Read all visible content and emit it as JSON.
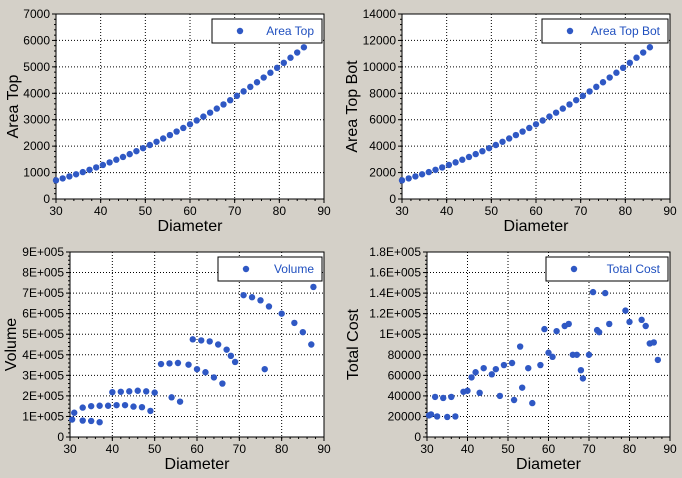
{
  "colors": {
    "marker": "#2f58c4",
    "background": "#d4d0c8",
    "grid": "#000000"
  },
  "chart_data": [
    {
      "type": "scatter",
      "xlabel": "Diameter",
      "ylabel": "Area Top",
      "xlim": [
        30,
        90
      ],
      "ylim": [
        0,
        7000
      ],
      "xticks": [
        30,
        40,
        50,
        60,
        70,
        80,
        90
      ],
      "xtick_labels": [
        "30",
        "40",
        "50",
        "60",
        "70",
        "80",
        "90"
      ],
      "yticks": [
        0,
        1000,
        2000,
        3000,
        4000,
        5000,
        6000,
        7000
      ],
      "ytick_labels": [
        "0",
        "1000",
        "2000",
        "3000",
        "4000",
        "5000",
        "6000",
        "7000"
      ],
      "grid": true,
      "legend": "top-right",
      "series": [
        {
          "name": "Area Top",
          "points": [
            [
              30,
              707
            ],
            [
              31.5,
              779
            ],
            [
              33,
              855
            ],
            [
              34.5,
              935
            ],
            [
              36,
              1018
            ],
            [
              37.5,
              1104
            ],
            [
              39,
              1195
            ],
            [
              40.5,
              1288
            ],
            [
              42,
              1385
            ],
            [
              43.5,
              1486
            ],
            [
              45,
              1590
            ],
            [
              46.5,
              1698
            ],
            [
              48,
              1810
            ],
            [
              49.5,
              1924
            ],
            [
              51,
              2043
            ],
            [
              52.5,
              2165
            ],
            [
              54,
              2290
            ],
            [
              55.5,
              2419
            ],
            [
              57,
              2552
            ],
            [
              58.5,
              2688
            ],
            [
              60,
              2827
            ],
            [
              61.5,
              2971
            ],
            [
              63,
              3117
            ],
            [
              64.5,
              3267
            ],
            [
              66,
              3421
            ],
            [
              67.5,
              3578
            ],
            [
              69,
              3739
            ],
            [
              70.5,
              3904
            ],
            [
              72,
              4072
            ],
            [
              73.5,
              4243
            ],
            [
              75,
              4418
            ],
            [
              76.5,
              4596
            ],
            [
              78,
              4778
            ],
            [
              79.5,
              4964
            ],
            [
              81,
              5153
            ],
            [
              82.5,
              5346
            ],
            [
              84,
              5542
            ],
            [
              85.5,
              5741
            ]
          ]
        }
      ]
    },
    {
      "type": "scatter",
      "xlabel": "Diameter",
      "ylabel": "Area Top Bot",
      "xlim": [
        30,
        90
      ],
      "ylim": [
        0,
        14000
      ],
      "xticks": [
        30,
        40,
        50,
        60,
        70,
        80,
        90
      ],
      "xtick_labels": [
        "30",
        "40",
        "50",
        "60",
        "70",
        "80",
        "90"
      ],
      "yticks": [
        0,
        2000,
        4000,
        6000,
        8000,
        10000,
        12000,
        14000
      ],
      "ytick_labels": [
        "0",
        "2000",
        "4000",
        "6000",
        "8000",
        "10000",
        "12000",
        "14000"
      ],
      "grid": true,
      "legend": "top-right",
      "series": [
        {
          "name": "Area Top Bot",
          "points": [
            [
              30,
              1414
            ],
            [
              31.5,
              1558
            ],
            [
              33,
              1710
            ],
            [
              34.5,
              1870
            ],
            [
              36,
              2036
            ],
            [
              37.5,
              2209
            ],
            [
              39,
              2389
            ],
            [
              40.5,
              2577
            ],
            [
              42,
              2771
            ],
            [
              43.5,
              2972
            ],
            [
              45,
              3181
            ],
            [
              46.5,
              3397
            ],
            [
              48,
              3619
            ],
            [
              49.5,
              3849
            ],
            [
              51,
              4086
            ],
            [
              52.5,
              4330
            ],
            [
              54,
              4580
            ],
            [
              55.5,
              4838
            ],
            [
              57,
              5104
            ],
            [
              58.5,
              5376
            ],
            [
              60,
              5655
            ],
            [
              61.5,
              5941
            ],
            [
              63,
              6235
            ],
            [
              64.5,
              6535
            ],
            [
              66,
              6842
            ],
            [
              67.5,
              7157
            ],
            [
              69,
              7479
            ],
            [
              70.5,
              7807
            ],
            [
              72,
              8143
            ],
            [
              73.5,
              8486
            ],
            [
              75,
              8836
            ],
            [
              76.5,
              9193
            ],
            [
              78,
              9557
            ],
            [
              79.5,
              9928
            ],
            [
              81,
              10306
            ],
            [
              82.5,
              10691
            ],
            [
              84,
              11084
            ],
            [
              85.5,
              11483
            ]
          ]
        }
      ]
    },
    {
      "type": "scatter",
      "xlabel": "Diameter",
      "ylabel": "Volume",
      "xlim": [
        30,
        90
      ],
      "ylim": [
        0,
        900000
      ],
      "xticks": [
        30,
        40,
        50,
        60,
        70,
        80,
        90
      ],
      "xtick_labels": [
        "30",
        "40",
        "50",
        "60",
        "70",
        "80",
        "90"
      ],
      "yticks": [
        0,
        100000,
        200000,
        300000,
        400000,
        500000,
        600000,
        700000,
        800000,
        900000
      ],
      "ytick_labels": [
        "0",
        "1E+005",
        "2E+005",
        "3E+005",
        "4E+005",
        "5E+005",
        "6E+005",
        "7E+005",
        "8E+005",
        "9E+005"
      ],
      "grid": true,
      "legend": "top-right",
      "series": [
        {
          "name": "Volume",
          "points": [
            [
              30.5,
              85000
            ],
            [
              31,
              118000
            ],
            [
              33,
              80000
            ],
            [
              33,
              143000
            ],
            [
              35,
              78000
            ],
            [
              35,
              150000
            ],
            [
              37,
              72000
            ],
            [
              37,
              152000
            ],
            [
              39,
              152000
            ],
            [
              40,
              218000
            ],
            [
              41,
              155000
            ],
            [
              42,
              220000
            ],
            [
              43,
              155000
            ],
            [
              44,
              222000
            ],
            [
              45,
              148000
            ],
            [
              46,
              225000
            ],
            [
              47,
              145000
            ],
            [
              48,
              222000
            ],
            [
              49,
              127000
            ],
            [
              50,
              216000
            ],
            [
              51.5,
              355000
            ],
            [
              53.5,
              358000
            ],
            [
              54,
              193000
            ],
            [
              55.5,
              360000
            ],
            [
              56,
              172000
            ],
            [
              58,
              352000
            ],
            [
              59,
              475000
            ],
            [
              60,
              330000
            ],
            [
              61,
              470000
            ],
            [
              62,
              315000
            ],
            [
              63,
              465000
            ],
            [
              64,
              290000
            ],
            [
              65,
              450000
            ],
            [
              66,
              260000
            ],
            [
              67,
              425000
            ],
            [
              68,
              395000
            ],
            [
              69,
              365000
            ],
            [
              71,
              690000
            ],
            [
              73,
              680000
            ],
            [
              75,
              665000
            ],
            [
              76,
              330000
            ],
            [
              77,
              635000
            ],
            [
              80,
              600000
            ],
            [
              83,
              555000
            ],
            [
              85,
              510000
            ],
            [
              87,
              450000
            ],
            [
              87.5,
              730000
            ]
          ]
        }
      ]
    },
    {
      "type": "scatter",
      "xlabel": "Diameter",
      "ylabel": "Total Cost",
      "xlim": [
        30,
        90
      ],
      "ylim": [
        0,
        180000
      ],
      "xticks": [
        30,
        40,
        50,
        60,
        70,
        80,
        90
      ],
      "xtick_labels": [
        "30",
        "40",
        "50",
        "60",
        "70",
        "80",
        "90"
      ],
      "yticks": [
        0,
        20000,
        40000,
        60000,
        80000,
        100000,
        120000,
        140000,
        160000,
        180000
      ],
      "ytick_labels": [
        "0",
        "20000",
        "40000",
        "60000",
        "80000",
        "1E+005",
        "1.2E+005",
        "1.4E+005",
        "1.6E+005",
        "1.8E+005"
      ],
      "grid": true,
      "legend": "top-right",
      "series": [
        {
          "name": "Total Cost",
          "points": [
            [
              30.5,
              21000
            ],
            [
              31,
              22000
            ],
            [
              32,
              39000
            ],
            [
              32.5,
              20000
            ],
            [
              34,
              38000
            ],
            [
              35,
              19500
            ],
            [
              36,
              39000
            ],
            [
              37,
              20000
            ],
            [
              39,
              44000
            ],
            [
              40,
              45000
            ],
            [
              41,
              58000
            ],
            [
              42,
              63000
            ],
            [
              43,
              43000
            ],
            [
              44,
              67000
            ],
            [
              46,
              61000
            ],
            [
              47,
              66000
            ],
            [
              48,
              40000
            ],
            [
              49,
              70000
            ],
            [
              51,
              72000
            ],
            [
              51.5,
              36000
            ],
            [
              53,
              88000
            ],
            [
              53.5,
              48000
            ],
            [
              55,
              67000
            ],
            [
              56,
              33000
            ],
            [
              58,
              70000
            ],
            [
              59,
              105000
            ],
            [
              60,
              82000
            ],
            [
              61,
              78000
            ],
            [
              62,
              103000
            ],
            [
              64,
              108000
            ],
            [
              65,
              110000
            ],
            [
              66,
              80000
            ],
            [
              67,
              80000
            ],
            [
              68,
              65000
            ],
            [
              68.5,
              57000
            ],
            [
              70,
              80000
            ],
            [
              71,
              141000
            ],
            [
              72,
              104000
            ],
            [
              72.5,
              102000
            ],
            [
              74,
              140000
            ],
            [
              75,
              110000
            ],
            [
              79,
              123000
            ],
            [
              80,
              112000
            ],
            [
              83,
              114000
            ],
            [
              84,
              108000
            ],
            [
              85,
              91000
            ],
            [
              86,
              92000
            ],
            [
              87,
              75000
            ]
          ]
        }
      ]
    }
  ]
}
